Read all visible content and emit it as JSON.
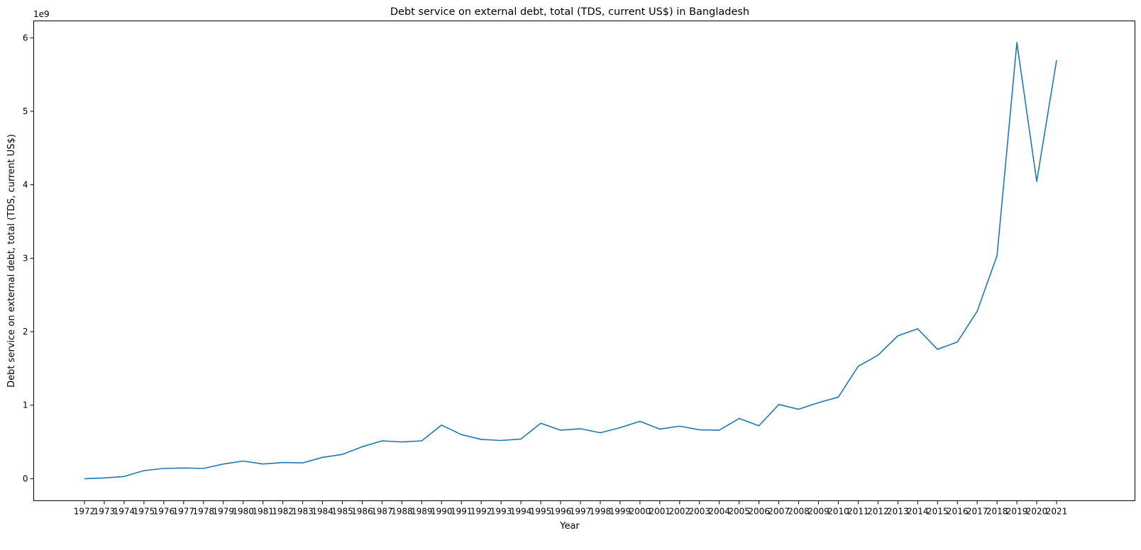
{
  "chart_data": {
    "type": "line",
    "title": "Debt service on external debt, total (TDS, current US$) in Bangladesh",
    "xlabel": "Year",
    "ylabel": "Debt service on external debt, total (TDS, current US$)",
    "y_offset_text": "1e9",
    "y_scale_factor": 1000000000,
    "ylim": [
      -300000000,
      6230000000
    ],
    "y_ticks": [
      0,
      1,
      2,
      3,
      4,
      5,
      6
    ],
    "grid": false,
    "legend": "none",
    "color": "#1f77b4",
    "categories": [
      "1972",
      "1973",
      "1974",
      "1975",
      "1976",
      "1977",
      "1978",
      "1979",
      "1980",
      "1981",
      "1982",
      "1983",
      "1984",
      "1985",
      "1986",
      "1987",
      "1988",
      "1989",
      "1990",
      "1991",
      "1992",
      "1993",
      "1994",
      "1995",
      "1996",
      "1997",
      "1998",
      "1999",
      "2000",
      "2001",
      "2002",
      "2003",
      "2004",
      "2005",
      "2006",
      "2007",
      "2008",
      "2009",
      "2010",
      "2011",
      "2012",
      "2013",
      "2014",
      "2015",
      "2016",
      "2017",
      "2018",
      "2019",
      "2020",
      "2021"
    ],
    "series": [
      {
        "values": [
          0,
          10000000,
          30000000,
          110000000,
          140000000,
          145000000,
          140000000,
          200000000,
          240000000,
          200000000,
          220000000,
          215000000,
          290000000,
          330000000,
          435000000,
          515000000,
          500000000,
          515000000,
          730000000,
          600000000,
          535000000,
          520000000,
          540000000,
          755000000,
          660000000,
          680000000,
          625000000,
          695000000,
          780000000,
          675000000,
          715000000,
          665000000,
          660000000,
          820000000,
          720000000,
          1010000000,
          945000000,
          1035000000,
          1110000000,
          1530000000,
          1680000000,
          1945000000,
          2040000000,
          1760000000,
          1860000000,
          2280000000,
          3035000000,
          5935000000,
          4045000000,
          5695000000
        ]
      }
    ]
  }
}
